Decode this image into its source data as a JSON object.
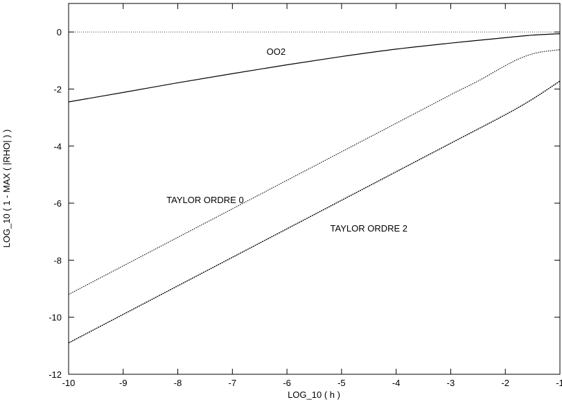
{
  "chart_data": {
    "type": "line",
    "title": "",
    "xlabel": "LOG_10 ( h )",
    "ylabel": "LOG_10 ( 1 - MAX ( |RHO| ) )",
    "xlim": [
      -10,
      -1
    ],
    "ylim": [
      -12,
      1
    ],
    "x_ticks": [
      "-10",
      "-9",
      "-8",
      "-7",
      "-6",
      "-5",
      "-4",
      "-3",
      "-2",
      "-1"
    ],
    "y_ticks": [
      "0",
      "-2",
      "-4",
      "-6",
      "-8",
      "-10",
      "-12"
    ],
    "x_tick_values": [
      -10,
      -9,
      -8,
      -7,
      -6,
      -5,
      -4,
      -3,
      -2,
      -1
    ],
    "y_tick_values": [
      0,
      -2,
      -4,
      -6,
      -8,
      -10,
      -12
    ],
    "grid": false,
    "legend": "none",
    "reference_line": {
      "y": 0,
      "style": "dotted"
    },
    "series": [
      {
        "style": "solid",
        "x": [
          -10,
          -9,
          -8,
          -7,
          -6,
          -5,
          -4,
          -3,
          -2,
          -1.5,
          -1
        ],
        "y": [
          -2.45,
          -2.12,
          -1.78,
          -1.46,
          -1.15,
          -0.86,
          -0.6,
          -0.39,
          -0.2,
          -0.11,
          -0.06
        ]
      },
      {
        "style": "dotted",
        "x": [
          -10,
          -9,
          -8,
          -7,
          -6,
          -5,
          -4,
          -3,
          -2.5,
          -2,
          -1.7,
          -1.4,
          -1
        ],
        "y": [
          -9.2,
          -8.2,
          -7.2,
          -6.2,
          -5.2,
          -4.2,
          -3.2,
          -2.2,
          -1.72,
          -1.18,
          -0.9,
          -0.72,
          -0.62
        ]
      },
      {
        "style": "dashed",
        "x": [
          -10,
          -9,
          -8,
          -7,
          -6,
          -5,
          -4,
          -3,
          -2,
          -1.5,
          -1
        ],
        "y": [
          -10.9,
          -9.9,
          -8.9,
          -7.9,
          -6.9,
          -5.9,
          -4.9,
          -3.9,
          -2.9,
          -2.35,
          -1.72
        ]
      }
    ],
    "annotations": [
      {
        "text": "OO2",
        "x": -6.2,
        "y": -0.8
      },
      {
        "text": "TAYLOR ORDRE 0",
        "x": -7.5,
        "y": -6.0
      },
      {
        "text": "TAYLOR ORDRE 2",
        "x": -4.5,
        "y": -7.0
      }
    ]
  }
}
